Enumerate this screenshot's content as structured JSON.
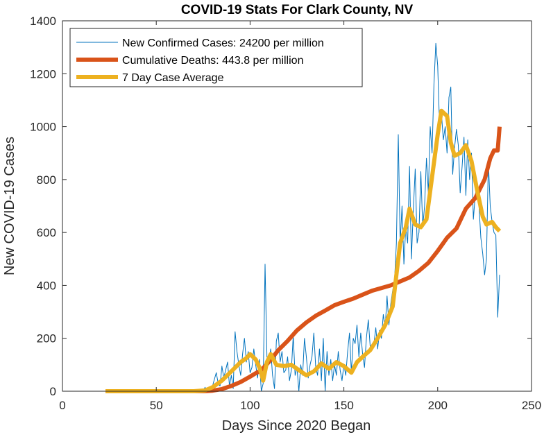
{
  "chart_data": {
    "type": "line",
    "title": "COVID-19 Stats For Clark County, NV",
    "xlabel": "Days Since 2020 Began",
    "ylabel": "New COVID-19 Cases",
    "xlim": [
      0,
      250
    ],
    "ylim": [
      0,
      1400
    ],
    "xticks": [
      0,
      50,
      100,
      150,
      200,
      250
    ],
    "yticks": [
      0,
      200,
      400,
      600,
      800,
      1000,
      1200,
      1400
    ],
    "grid": false,
    "legend_position": "top-left",
    "series": [
      {
        "name": "New Confirmed Cases: 24200 per million",
        "color": "#0072BD",
        "points": [
          [
            23,
            0
          ],
          [
            30,
            0
          ],
          [
            40,
            0
          ],
          [
            50,
            0
          ],
          [
            60,
            0
          ],
          [
            70,
            0
          ],
          [
            75,
            0
          ],
          [
            76,
            15
          ],
          [
            77,
            0
          ],
          [
            78,
            10
          ],
          [
            79,
            0
          ],
          [
            80,
            20
          ],
          [
            81,
            45
          ],
          [
            82,
            70
          ],
          [
            83,
            30
          ],
          [
            84,
            20
          ],
          [
            85,
            95
          ],
          [
            86,
            50
          ],
          [
            87,
            80
          ],
          [
            88,
            110
          ],
          [
            89,
            20
          ],
          [
            90,
            60
          ],
          [
            91,
            10
          ],
          [
            92,
            225
          ],
          [
            93,
            150
          ],
          [
            94,
            100
          ],
          [
            95,
            60
          ],
          [
            96,
            140
          ],
          [
            97,
            200
          ],
          [
            98,
            110
          ],
          [
            99,
            150
          ],
          [
            100,
            70
          ],
          [
            101,
            90
          ],
          [
            102,
            160
          ],
          [
            103,
            100
          ],
          [
            104,
            50
          ],
          [
            105,
            120
          ],
          [
            106,
            0
          ],
          [
            107,
            30
          ],
          [
            108,
            480
          ],
          [
            109,
            130
          ],
          [
            110,
            100
          ],
          [
            111,
            160
          ],
          [
            112,
            60
          ],
          [
            113,
            10
          ],
          [
            114,
            190
          ],
          [
            115,
            220
          ],
          [
            116,
            110
          ],
          [
            117,
            150
          ],
          [
            118,
            70
          ],
          [
            119,
            80
          ],
          [
            120,
            130
          ],
          [
            121,
            40
          ],
          [
            122,
            80
          ],
          [
            123,
            210
          ],
          [
            124,
            60
          ],
          [
            125,
            90
          ],
          [
            126,
            0
          ],
          [
            127,
            100
          ],
          [
            128,
            60
          ],
          [
            129,
            200
          ],
          [
            130,
            130
          ],
          [
            131,
            50
          ],
          [
            132,
            100
          ],
          [
            133,
            130
          ],
          [
            134,
            220
          ],
          [
            135,
            90
          ],
          [
            136,
            60
          ],
          [
            137,
            160
          ],
          [
            138,
            40
          ],
          [
            139,
            200
          ],
          [
            140,
            0
          ],
          [
            141,
            150
          ],
          [
            142,
            60
          ],
          [
            143,
            120
          ],
          [
            144,
            40
          ],
          [
            145,
            100
          ],
          [
            146,
            60
          ],
          [
            147,
            150
          ],
          [
            148,
            80
          ],
          [
            149,
            40
          ],
          [
            150,
            100
          ],
          [
            151,
            60
          ],
          [
            152,
            150
          ],
          [
            153,
            220
          ],
          [
            154,
            70
          ],
          [
            155,
            200
          ],
          [
            156,
            180
          ],
          [
            157,
            250
          ],
          [
            158,
            130
          ],
          [
            159,
            220
          ],
          [
            160,
            140
          ],
          [
            161,
            90
          ],
          [
            162,
            200
          ],
          [
            163,
            270
          ],
          [
            164,
            170
          ],
          [
            165,
            160
          ],
          [
            166,
            180
          ],
          [
            167,
            240
          ],
          [
            168,
            160
          ],
          [
            169,
            230
          ],
          [
            170,
            200
          ],
          [
            171,
            290
          ],
          [
            172,
            240
          ],
          [
            173,
            360
          ],
          [
            174,
            250
          ],
          [
            175,
            330
          ],
          [
            176,
            380
          ],
          [
            177,
            420
          ],
          [
            178,
            560
          ],
          [
            179,
            970
          ],
          [
            180,
            560
          ],
          [
            181,
            700
          ],
          [
            182,
            480
          ],
          [
            183,
            620
          ],
          [
            184,
            560
          ],
          [
            185,
            850
          ],
          [
            186,
            500
          ],
          [
            187,
            680
          ],
          [
            188,
            840
          ],
          [
            189,
            560
          ],
          [
            190,
            600
          ],
          [
            191,
            830
          ],
          [
            192,
            620
          ],
          [
            193,
            700
          ],
          [
            194,
            880
          ],
          [
            195,
            750
          ],
          [
            196,
            1000
          ],
          [
            197,
            900
          ],
          [
            198,
            1160
          ],
          [
            199,
            1315
          ],
          [
            200,
            1230
          ],
          [
            201,
            1000
          ],
          [
            202,
            1050
          ],
          [
            203,
            950
          ],
          [
            204,
            1000
          ],
          [
            205,
            900
          ],
          [
            206,
            1110
          ],
          [
            207,
            1150
          ],
          [
            208,
            820
          ],
          [
            209,
            920
          ],
          [
            210,
            990
          ],
          [
            211,
            930
          ],
          [
            212,
            750
          ],
          [
            213,
            850
          ],
          [
            214,
            960
          ],
          [
            215,
            740
          ],
          [
            216,
            950
          ],
          [
            217,
            800
          ],
          [
            218,
            900
          ],
          [
            219,
            650
          ],
          [
            220,
            740
          ],
          [
            221,
            780
          ],
          [
            222,
            700
          ],
          [
            223,
            580
          ],
          [
            224,
            520
          ],
          [
            225,
            440
          ],
          [
            226,
            500
          ],
          [
            227,
            870
          ],
          [
            228,
            700
          ],
          [
            229,
            640
          ],
          [
            230,
            600
          ],
          [
            231,
            590
          ],
          [
            232,
            280
          ],
          [
            233,
            440
          ]
        ]
      },
      {
        "name": "Cumulative Deaths: 443.8 per million",
        "color": "#D95319",
        "points": [
          [
            23,
            0
          ],
          [
            76,
            0
          ],
          [
            80,
            2
          ],
          [
            85,
            8
          ],
          [
            90,
            20
          ],
          [
            95,
            35
          ],
          [
            100,
            55
          ],
          [
            103,
            68
          ],
          [
            106,
            80
          ],
          [
            110,
            110
          ],
          [
            115,
            155
          ],
          [
            120,
            190
          ],
          [
            125,
            230
          ],
          [
            130,
            260
          ],
          [
            135,
            285
          ],
          [
            140,
            305
          ],
          [
            145,
            325
          ],
          [
            150,
            338
          ],
          [
            155,
            350
          ],
          [
            160,
            365
          ],
          [
            165,
            380
          ],
          [
            170,
            390
          ],
          [
            175,
            400
          ],
          [
            180,
            415
          ],
          [
            185,
            430
          ],
          [
            190,
            455
          ],
          [
            195,
            485
          ],
          [
            200,
            530
          ],
          [
            205,
            580
          ],
          [
            210,
            615
          ],
          [
            215,
            690
          ],
          [
            220,
            730
          ],
          [
            225,
            800
          ],
          [
            228,
            880
          ],
          [
            230,
            910
          ],
          [
            232,
            910
          ],
          [
            233,
            1000
          ]
        ]
      },
      {
        "name": "7 Day Case Average",
        "color": "#EDB120",
        "points": [
          [
            23,
            0
          ],
          [
            70,
            0
          ],
          [
            76,
            3
          ],
          [
            80,
            15
          ],
          [
            85,
            40
          ],
          [
            90,
            75
          ],
          [
            95,
            110
          ],
          [
            98,
            125
          ],
          [
            100,
            140
          ],
          [
            103,
            120
          ],
          [
            105,
            90
          ],
          [
            107,
            40
          ],
          [
            109,
            110
          ],
          [
            111,
            140
          ],
          [
            114,
            100
          ],
          [
            118,
            95
          ],
          [
            122,
            100
          ],
          [
            126,
            80
          ],
          [
            130,
            60
          ],
          [
            134,
            75
          ],
          [
            138,
            105
          ],
          [
            142,
            85
          ],
          [
            146,
            110
          ],
          [
            150,
            95
          ],
          [
            154,
            70
          ],
          [
            157,
            110
          ],
          [
            160,
            130
          ],
          [
            164,
            155
          ],
          [
            168,
            200
          ],
          [
            172,
            250
          ],
          [
            176,
            320
          ],
          [
            180,
            560
          ],
          [
            183,
            620
          ],
          [
            185,
            690
          ],
          [
            188,
            630
          ],
          [
            191,
            620
          ],
          [
            194,
            650
          ],
          [
            197,
            810
          ],
          [
            200,
            970
          ],
          [
            202,
            1060
          ],
          [
            205,
            1040
          ],
          [
            207,
            940
          ],
          [
            209,
            890
          ],
          [
            212,
            900
          ],
          [
            215,
            930
          ],
          [
            218,
            870
          ],
          [
            221,
            760
          ],
          [
            224,
            660
          ],
          [
            226,
            630
          ],
          [
            229,
            640
          ],
          [
            231,
            620
          ],
          [
            233,
            605
          ]
        ]
      }
    ]
  }
}
